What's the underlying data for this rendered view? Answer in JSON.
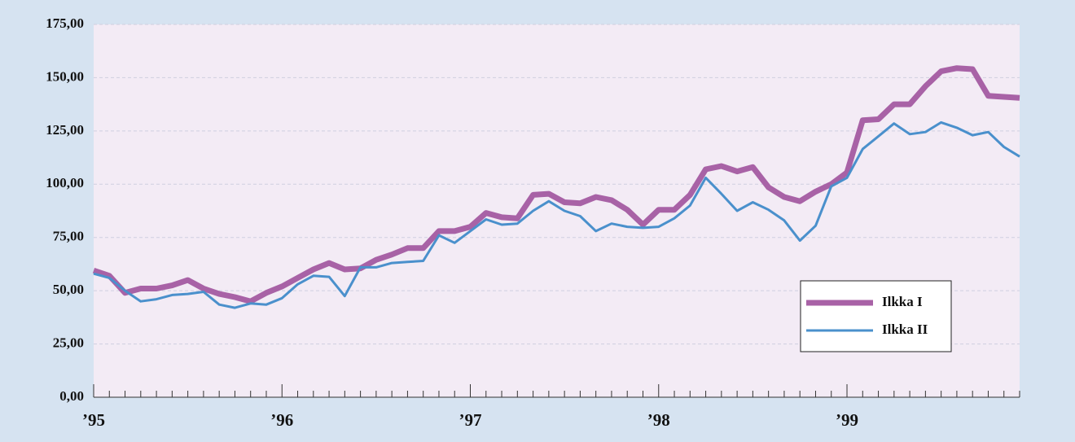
{
  "chart_data": {
    "type": "line",
    "categories": [
      "’95",
      null,
      null,
      null,
      null,
      null,
      null,
      null,
      null,
      null,
      null,
      null,
      "’96",
      null,
      null,
      null,
      null,
      null,
      null,
      null,
      null,
      null,
      null,
      null,
      "’97",
      null,
      null,
      null,
      null,
      null,
      null,
      null,
      null,
      null,
      null,
      null,
      "’98",
      null,
      null,
      null,
      null,
      null,
      null,
      null,
      null,
      null,
      null,
      null,
      "’99",
      null,
      null,
      null,
      null,
      null,
      null,
      null,
      null,
      null,
      null,
      null
    ],
    "series": [
      {
        "name": "Ilkka I",
        "color": "#a862a6",
        "values": [
          59.5,
          57,
          49,
          51,
          51,
          52.5,
          55,
          51,
          48.5,
          47,
          45,
          49,
          52,
          56,
          60,
          63,
          60,
          60.5,
          64.5,
          67,
          70,
          70,
          78,
          78,
          80,
          86.5,
          84.5,
          84,
          95,
          95.5,
          91.5,
          91,
          94,
          92.5,
          88,
          81,
          88,
          88,
          95,
          107,
          108.5,
          106,
          108,
          98.5,
          94,
          92,
          96.5,
          100,
          105.5,
          130,
          130.5,
          137.5,
          137.5,
          146,
          153,
          154.5,
          154,
          141.5,
          141,
          140.5
        ]
      },
      {
        "name": "Ilkka II",
        "color": "#4a90cc",
        "values": [
          58,
          56,
          50,
          45,
          46,
          48,
          48.5,
          49.5,
          43.5,
          42,
          44,
          43.5,
          46.5,
          53,
          57,
          56.5,
          47.5,
          61,
          61,
          63,
          63.5,
          64,
          76,
          72.5,
          78,
          83.5,
          81,
          81.5,
          87.5,
          92,
          87.5,
          85,
          78,
          81.5,
          80,
          79.5,
          80,
          84,
          90,
          103,
          95.5,
          87.5,
          91.5,
          88,
          83,
          73.5,
          80.5,
          99,
          103,
          116.5,
          122.5,
          128.5,
          123.5,
          124.5,
          129,
          126.5,
          123,
          124.5,
          117.5,
          113
        ]
      }
    ],
    "ylim": [
      0,
      175
    ],
    "yticks": [
      {
        "value": 0,
        "label": "0,00"
      },
      {
        "value": 25,
        "label": "25,00"
      },
      {
        "value": 50,
        "label": "50,00"
      },
      {
        "value": 75,
        "label": "75,00"
      },
      {
        "value": 100,
        "label": "100,00"
      },
      {
        "value": 125,
        "label": "125,00"
      },
      {
        "value": 150,
        "label": "150,00"
      },
      {
        "value": 175,
        "label": "175,00"
      }
    ],
    "grid": true,
    "legend": "lower right"
  }
}
